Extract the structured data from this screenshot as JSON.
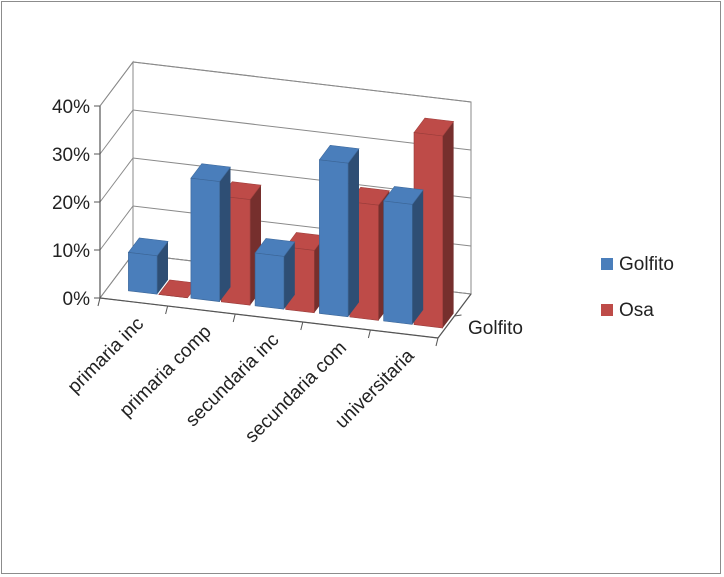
{
  "chart_data": {
    "type": "bar",
    "subtype": "3d-clustered-column",
    "title": "",
    "xlabel": "",
    "ylabel": "",
    "categories": [
      "primaria inc",
      "primaria comp",
      "secundaria inc",
      "secundaria com",
      "universitaria"
    ],
    "series": [
      {
        "name": "Golfito",
        "color": "#4a7ebb",
        "values": [
          0.08,
          0.25,
          0.11,
          0.32,
          0.25
        ]
      },
      {
        "name": "Osa",
        "color": "#be4b48",
        "values": [
          0.0,
          0.22,
          0.13,
          0.24,
          0.4
        ]
      }
    ],
    "ylim": [
      0,
      0.4
    ],
    "yticks": [
      "0%",
      "10%",
      "20%",
      "30%",
      "40%"
    ],
    "depth_axis_label": "Golfito",
    "grid": true,
    "legend_position": "right"
  }
}
